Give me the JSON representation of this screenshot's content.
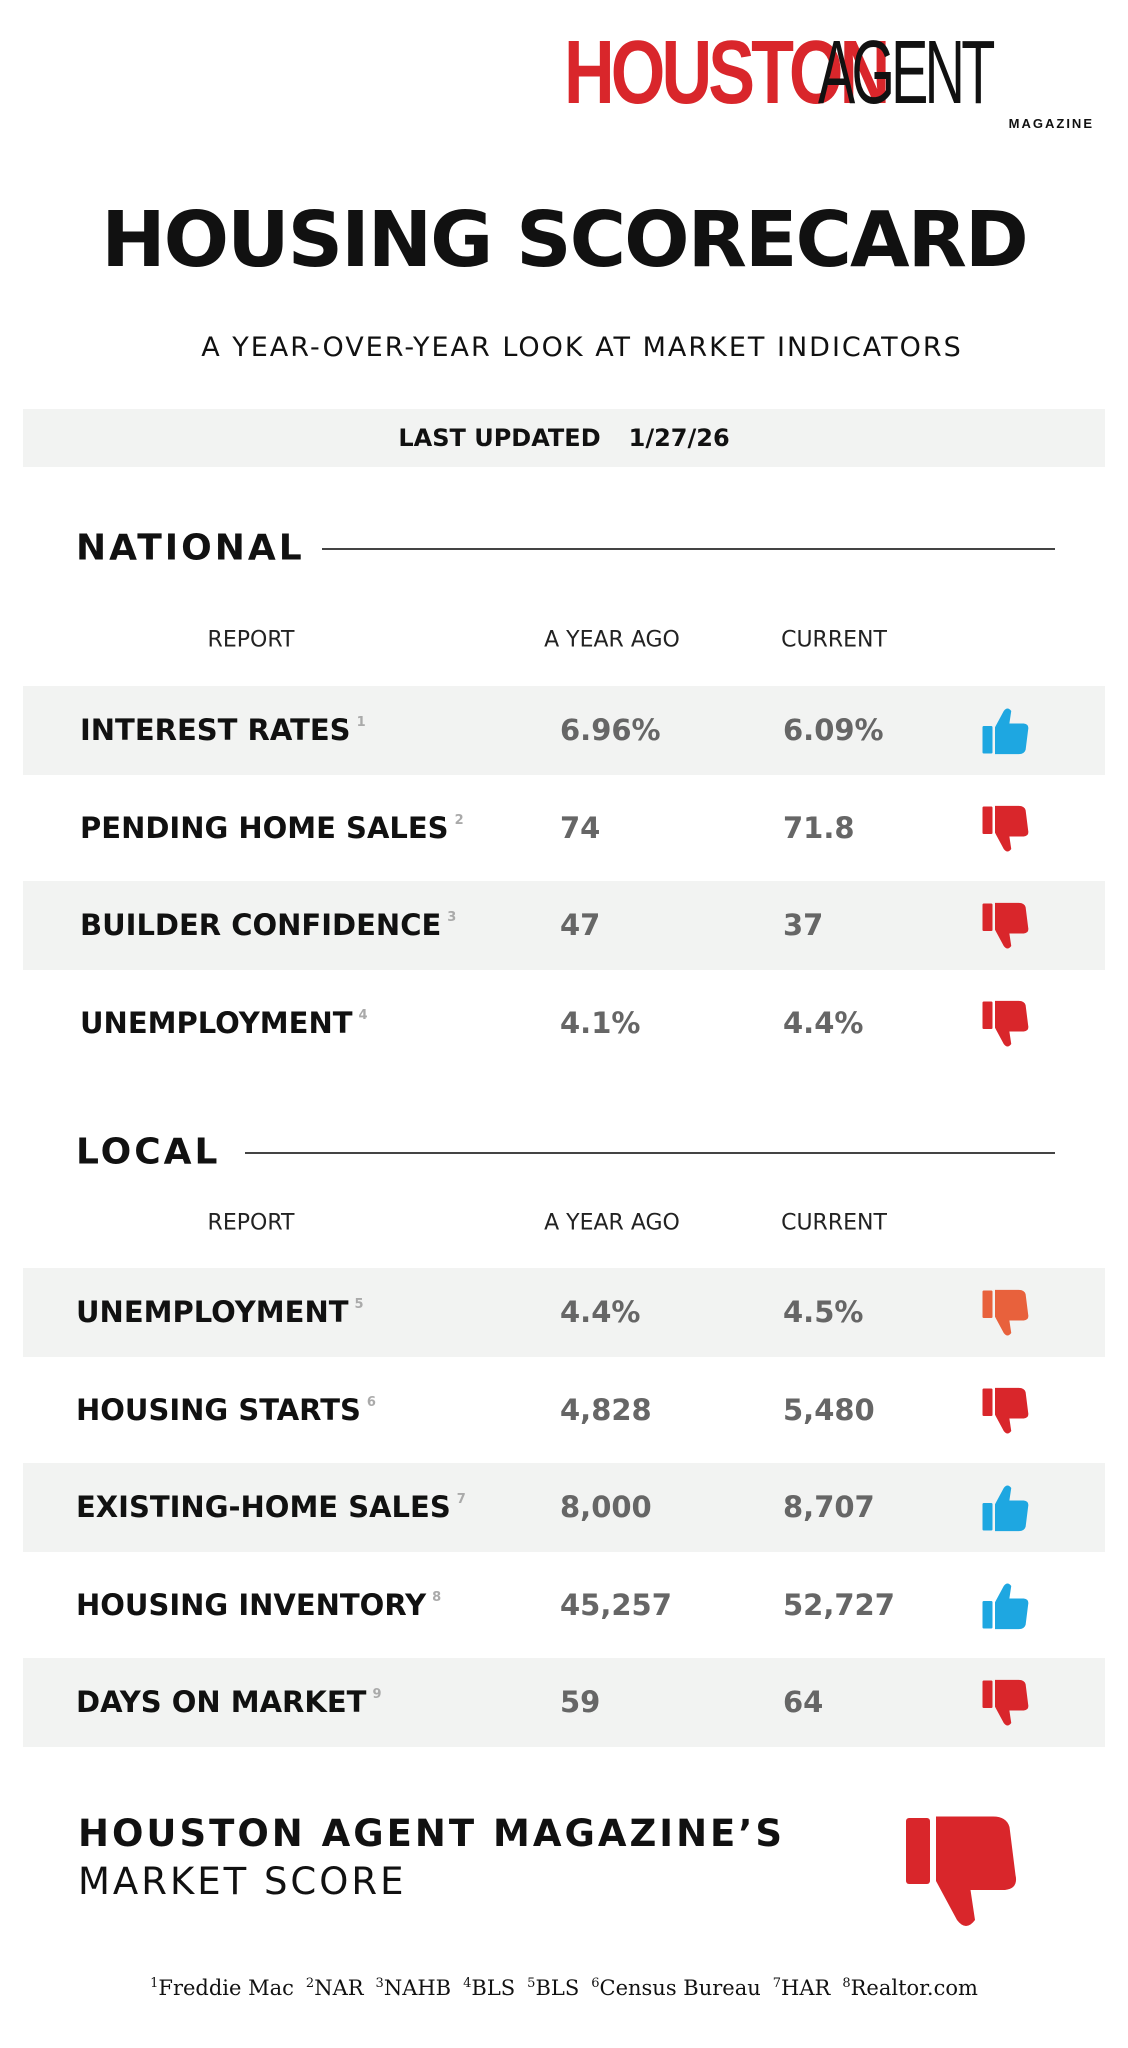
{
  "logo": {
    "primary": "HOUSTON",
    "secondary": "AGENT",
    "tagline": "MAGAZINE"
  },
  "title": "HOUSING SCORECARD",
  "subtitle": "A YEAR-OVER-YEAR LOOK AT MARKET INDICATORS",
  "updated": {
    "label": "LAST UPDATED",
    "date": "1/27/26"
  },
  "national": {
    "heading": "NATIONAL",
    "columns": [
      "REPORT",
      "A YEAR AGO",
      "CURRENT"
    ],
    "rows": [
      {
        "label": "INTEREST RATES",
        "note": "1",
        "year_ago": "6.96%",
        "current": "6.09%",
        "signal": "up",
        "color": "#1ea7e1"
      },
      {
        "label": "PENDING HOME SALES",
        "note": "2",
        "year_ago": "74",
        "current": "71.8",
        "signal": "down",
        "color": "#d9262b"
      },
      {
        "label": "BUILDER CONFIDENCE",
        "note": "3",
        "year_ago": "47",
        "current": "37",
        "signal": "down",
        "color": "#d9262b"
      },
      {
        "label": "UNEMPLOYMENT",
        "note": "4",
        "year_ago": "4.1%",
        "current": "4.4%",
        "signal": "down",
        "color": "#d9262b"
      }
    ]
  },
  "local": {
    "heading": "LOCAL",
    "columns": [
      "REPORT",
      "A YEAR AGO",
      "CURRENT"
    ],
    "rows": [
      {
        "label": "UNEMPLOYMENT",
        "note": "5",
        "year_ago": "4.4%",
        "current": "4.5%",
        "signal": "down",
        "color": "#e8613c"
      },
      {
        "label": "HOUSING STARTS",
        "note": "6",
        "year_ago": "4,828",
        "current": "5,480",
        "signal": "down",
        "color": "#d9262b"
      },
      {
        "label": "EXISTING-HOME SALES",
        "note": "7",
        "year_ago": "8,000",
        "current": "8,707",
        "signal": "up",
        "color": "#1ea7e1"
      },
      {
        "label": "HOUSING INVENTORY",
        "note": "8",
        "year_ago": "45,257",
        "current": "52,727",
        "signal": "up",
        "color": "#1ea7e1"
      },
      {
        "label": "DAYS ON MARKET",
        "note": "9",
        "year_ago": "59",
        "current": "64",
        "signal": "down",
        "color": "#d9262b"
      }
    ]
  },
  "market_score": {
    "line1": "HOUSTON AGENT MAGAZINE’S",
    "line2": "MARKET SCORE",
    "signal": "down",
    "color": "#d9262b"
  },
  "footnotes": [
    {
      "mark": "1",
      "source": "Freddie Mac"
    },
    {
      "mark": "2",
      "source": "NAR"
    },
    {
      "mark": "3",
      "source": "NAHB"
    },
    {
      "mark": "4",
      "source": "BLS"
    },
    {
      "mark": "5",
      "source": "BLS"
    },
    {
      "mark": "6",
      "source": "Census Bureau"
    },
    {
      "mark": "7",
      "source": "HAR"
    },
    {
      "mark": "8",
      "source": "Realtor.com"
    }
  ]
}
